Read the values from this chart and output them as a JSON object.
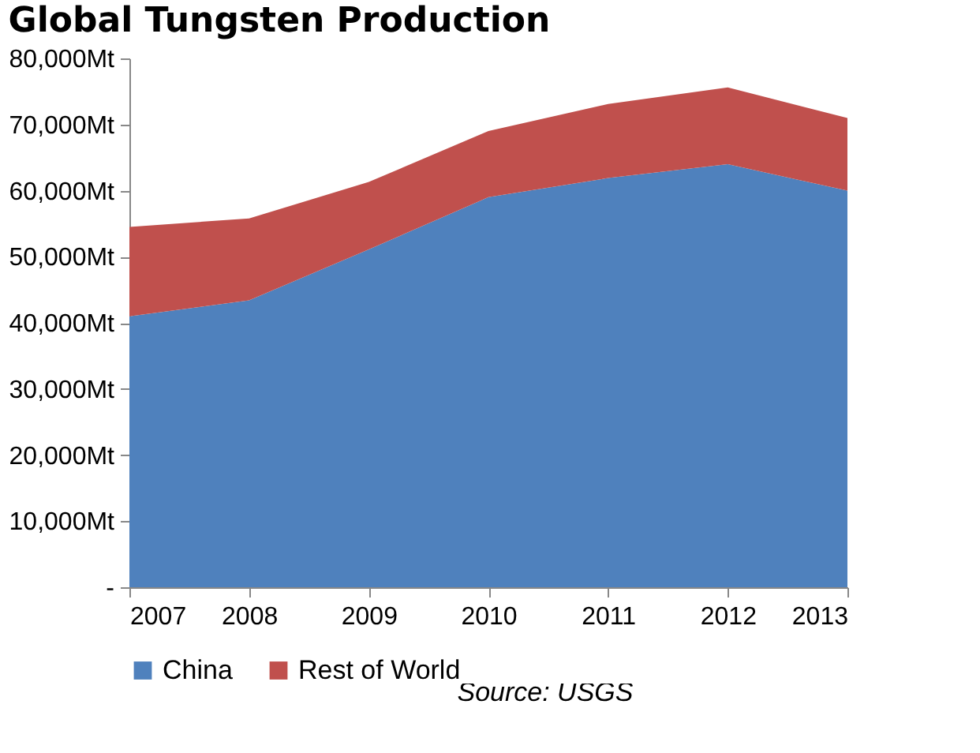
{
  "chart_data": {
    "type": "area",
    "title": "Global Tungsten Production",
    "stacked": true,
    "categories": [
      "2007",
      "2008",
      "2009",
      "2010",
      "2011",
      "2012",
      "2013"
    ],
    "series": [
      {
        "name": "China",
        "color": "#4f81bd",
        "values": [
          41000,
          43400,
          51100,
          59000,
          61900,
          64000,
          60000
        ]
      },
      {
        "name": "Rest of World",
        "color": "#c0504d",
        "values": [
          13500,
          12400,
          10200,
          10000,
          11200,
          11600,
          11000
        ]
      }
    ],
    "ylim": [
      0,
      80000
    ],
    "yticks": [
      {
        "value": 0,
        "label": "-"
      },
      {
        "value": 10000,
        "label": "10,000Mt"
      },
      {
        "value": 20000,
        "label": "20,000Mt"
      },
      {
        "value": 30000,
        "label": "30,000Mt"
      },
      {
        "value": 40000,
        "label": "40,000Mt"
      },
      {
        "value": 50000,
        "label": "50,000Mt"
      },
      {
        "value": 60000,
        "label": "60,000Mt"
      },
      {
        "value": 70000,
        "label": "70,000Mt"
      },
      {
        "value": 80000,
        "label": "80,000Mt"
      }
    ],
    "grid": false,
    "legend": "bottom",
    "annotations": [
      "Source: USGS"
    ]
  }
}
